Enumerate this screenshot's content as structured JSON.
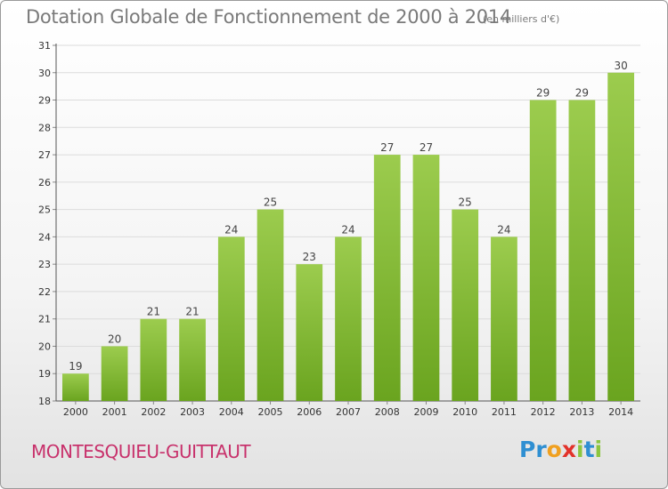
{
  "chart_data": {
    "type": "bar",
    "title": "Dotation Globale de Fonctionnement de 2000 à 2014",
    "unit_note": "(en milliers d'€)",
    "categories": [
      "2000",
      "2001",
      "2002",
      "2003",
      "2004",
      "2005",
      "2006",
      "2007",
      "2008",
      "2009",
      "2010",
      "2011",
      "2012",
      "2013",
      "2014"
    ],
    "values": [
      19,
      20,
      21,
      21,
      24,
      25,
      23,
      24,
      27,
      27,
      25,
      24,
      29,
      29,
      30
    ],
    "ylim": [
      18,
      31
    ],
    "yticks": [
      "18",
      "19",
      "20",
      "21",
      "22",
      "23",
      "24",
      "25",
      "26",
      "27",
      "28",
      "29",
      "30",
      "31"
    ],
    "xlabel": "",
    "ylabel": "",
    "grid": true,
    "bar_color_top": "#9ccc4e",
    "bar_color_bottom": "#6aa41f"
  },
  "footer": {
    "commune": "MONTESQUIEU-GUITTAUT",
    "logo_letters": [
      {
        "char": "P",
        "color": "#2f8fd2"
      },
      {
        "char": "r",
        "color": "#2f8fd2"
      },
      {
        "char": "o",
        "color": "#f0a020"
      },
      {
        "char": "x",
        "color": "#e2322a"
      },
      {
        "char": "i",
        "color": "#8cc63f"
      },
      {
        "char": "t",
        "color": "#2f8fd2"
      },
      {
        "char": "i",
        "color": "#8cc63f"
      }
    ]
  }
}
